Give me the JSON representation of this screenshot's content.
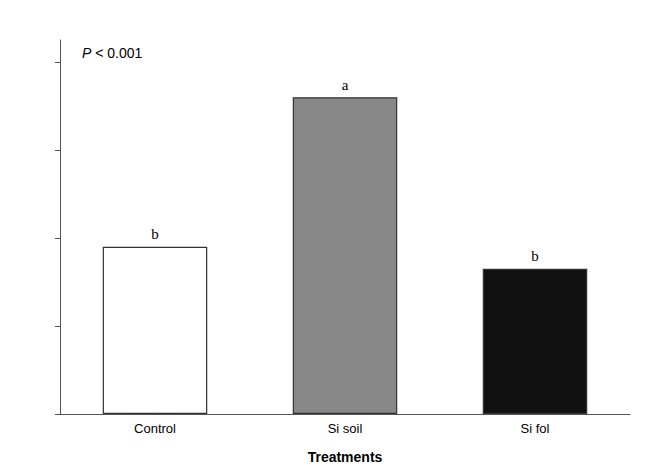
{
  "chart_data": {
    "type": "bar",
    "categories": [
      "Control",
      "Si soil",
      "Si fol"
    ],
    "values": [
      0.38,
      0.72,
      0.33
    ],
    "colors": [
      "#ffffff",
      "#888888",
      "#111111"
    ],
    "bar_labels": [
      "b",
      "a",
      "b"
    ],
    "annotations": [
      "P < 0.001"
    ],
    "xlabel": "Treatments",
    "ylim": [
      0,
      0.85
    ],
    "yticks": [
      0.0,
      0.2,
      0.4,
      0.6,
      0.8
    ],
    "tick_labels": "x",
    "grid": false
  }
}
